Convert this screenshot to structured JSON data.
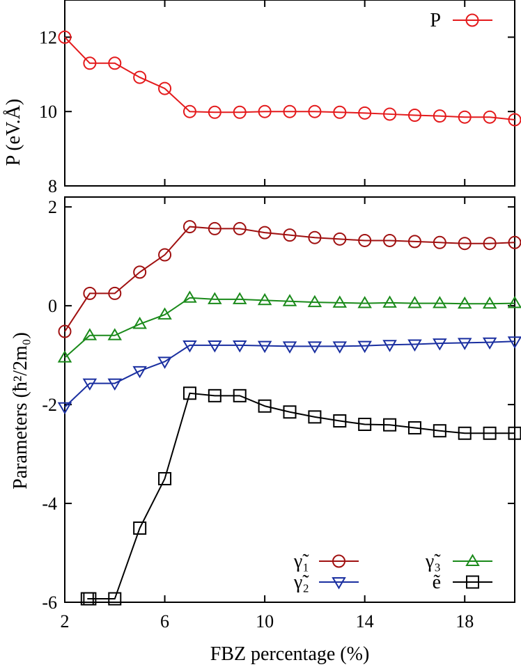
{
  "chart_data": [
    {
      "type": "line",
      "xlim": [
        2,
        20
      ],
      "ylim": [
        8,
        13
      ],
      "x_ticks": [
        "2",
        "6",
        "10",
        "14",
        "18"
      ],
      "y_ticks": [
        "8",
        "10",
        "12"
      ],
      "ylabel": "P (eV.Å)",
      "legend_position": "top-right",
      "series": [
        {
          "name": "P",
          "color": "#e41a1c",
          "marker": "circle",
          "x": [
            2,
            3,
            4,
            5,
            6,
            7,
            8,
            9,
            10,
            11,
            12,
            13,
            14,
            15,
            16,
            17,
            18,
            19,
            20
          ],
          "y": [
            12.0,
            11.3,
            11.3,
            10.92,
            10.62,
            10.0,
            9.98,
            9.98,
            10.0,
            10.0,
            10.0,
            9.98,
            9.96,
            9.93,
            9.9,
            9.88,
            9.85,
            9.85,
            9.78
          ]
        }
      ]
    },
    {
      "type": "line",
      "xlim": [
        2,
        20
      ],
      "ylim": [
        -6,
        2.2
      ],
      "x_ticks": [
        "2",
        "6",
        "10",
        "14",
        "18"
      ],
      "y_ticks": [
        "-6",
        "-4",
        "-2",
        "0",
        "2"
      ],
      "xlabel": "FBZ percentage (%)",
      "ylabel": "Parameters (ħ²/2m₀)",
      "legend_position": "bottom-right",
      "series": [
        {
          "name": "γ̃₁",
          "color": "#a01010",
          "marker": "circle",
          "x": [
            2,
            3,
            4,
            5,
            6,
            7,
            8,
            9,
            10,
            11,
            12,
            13,
            14,
            15,
            16,
            17,
            18,
            19,
            20
          ],
          "y": [
            -0.52,
            0.25,
            0.25,
            0.68,
            1.03,
            1.6,
            1.56,
            1.56,
            1.48,
            1.43,
            1.38,
            1.35,
            1.32,
            1.32,
            1.3,
            1.28,
            1.26,
            1.26,
            1.28
          ]
        },
        {
          "name": "γ̃₂",
          "color": "#1a2fa0",
          "marker": "triangle-down",
          "x": [
            2,
            3,
            4,
            5,
            6,
            7,
            8,
            9,
            10,
            11,
            12,
            13,
            14,
            15,
            16,
            17,
            18,
            19,
            20
          ],
          "y": [
            -2.05,
            -1.57,
            -1.57,
            -1.32,
            -1.13,
            -0.8,
            -0.8,
            -0.8,
            -0.81,
            -0.82,
            -0.82,
            -0.82,
            -0.81,
            -0.79,
            -0.78,
            -0.76,
            -0.75,
            -0.74,
            -0.72
          ]
        },
        {
          "name": "γ̃₃",
          "color": "#1a8a1a",
          "marker": "triangle-up",
          "x": [
            2,
            3,
            4,
            5,
            6,
            7,
            8,
            9,
            10,
            11,
            12,
            13,
            14,
            15,
            16,
            17,
            18,
            19,
            20
          ],
          "y": [
            -1.05,
            -0.6,
            -0.6,
            -0.37,
            -0.18,
            0.16,
            0.13,
            0.13,
            0.11,
            0.09,
            0.07,
            0.06,
            0.05,
            0.06,
            0.05,
            0.05,
            0.04,
            0.04,
            0.05
          ]
        },
        {
          "name": "ẽ",
          "color": "#000000",
          "marker": "square",
          "x": [
            2.9,
            3,
            4,
            5,
            6,
            7,
            8,
            9,
            10,
            11,
            12,
            13,
            14,
            15,
            16,
            17,
            18,
            19,
            20
          ],
          "y": [
            -5.93,
            -5.93,
            -5.93,
            -4.5,
            -3.5,
            -1.77,
            -1.82,
            -1.82,
            -2.03,
            -2.15,
            -2.25,
            -2.33,
            -2.4,
            -2.41,
            -2.47,
            -2.53,
            -2.58,
            -2.58,
            -2.58
          ]
        }
      ]
    }
  ]
}
